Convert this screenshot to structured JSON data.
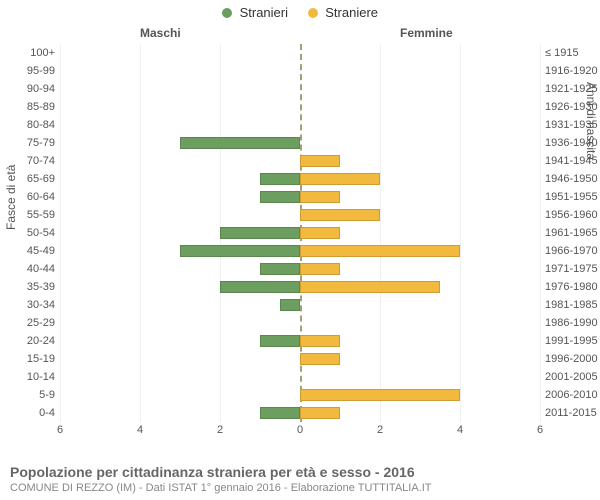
{
  "legend": {
    "male": {
      "label": "Stranieri",
      "color": "#6b9e5f"
    },
    "female": {
      "label": "Straniere",
      "color": "#f1b93e"
    }
  },
  "headers": {
    "male": "Maschi",
    "female": "Femmine"
  },
  "yaxis_left": "Fasce di età",
  "yaxis_right": "Anni di nascita",
  "footer_title": "Popolazione per cittadinanza straniera per età e sesso - 2016",
  "footer_sub": "COMUNE DI REZZO (IM) - Dati ISTAT 1° gennaio 2016 - Elaborazione TUTTITALIA.IT",
  "chart": {
    "type": "population-pyramid",
    "axis_max": 6,
    "tick_step": 2,
    "ticks_left": [
      6,
      4,
      2,
      0
    ],
    "ticks_right": [
      0,
      2,
      4,
      6
    ],
    "background_color": "#ffffff",
    "grid_color": "#f0f0f0",
    "center_line_color": "#7a7a3a",
    "center_line_dash": "4 4",
    "bar_border": "rgba(0,0,0,0.15)",
    "label_fontsize": 11,
    "label_color": "#555555",
    "rows": [
      {
        "age": "100+",
        "birth": "≤ 1915",
        "m": 0,
        "f": 0
      },
      {
        "age": "95-99",
        "birth": "1916-1920",
        "m": 0,
        "f": 0
      },
      {
        "age": "90-94",
        "birth": "1921-1925",
        "m": 0,
        "f": 0
      },
      {
        "age": "85-89",
        "birth": "1926-1930",
        "m": 0,
        "f": 0
      },
      {
        "age": "80-84",
        "birth": "1931-1935",
        "m": 0,
        "f": 0
      },
      {
        "age": "75-79",
        "birth": "1936-1940",
        "m": 3,
        "f": 0
      },
      {
        "age": "70-74",
        "birth": "1941-1945",
        "m": 0,
        "f": 1
      },
      {
        "age": "65-69",
        "birth": "1946-1950",
        "m": 1,
        "f": 2
      },
      {
        "age": "60-64",
        "birth": "1951-1955",
        "m": 1,
        "f": 1
      },
      {
        "age": "55-59",
        "birth": "1956-1960",
        "m": 0,
        "f": 2
      },
      {
        "age": "50-54",
        "birth": "1961-1965",
        "m": 2,
        "f": 1
      },
      {
        "age": "45-49",
        "birth": "1966-1970",
        "m": 3,
        "f": 4
      },
      {
        "age": "40-44",
        "birth": "1971-1975",
        "m": 1,
        "f": 1
      },
      {
        "age": "35-39",
        "birth": "1976-1980",
        "m": 2,
        "f": 3.5
      },
      {
        "age": "30-34",
        "birth": "1981-1985",
        "m": 0.5,
        "f": 0
      },
      {
        "age": "25-29",
        "birth": "1986-1990",
        "m": 0,
        "f": 0
      },
      {
        "age": "20-24",
        "birth": "1991-1995",
        "m": 1,
        "f": 1
      },
      {
        "age": "15-19",
        "birth": "1996-2000",
        "m": 0,
        "f": 1
      },
      {
        "age": "10-14",
        "birth": "2001-2005",
        "m": 0,
        "f": 0
      },
      {
        "age": "5-9",
        "birth": "2006-2010",
        "m": 0,
        "f": 4
      },
      {
        "age": "0-4",
        "birth": "2011-2015",
        "m": 1,
        "f": 1
      }
    ]
  }
}
